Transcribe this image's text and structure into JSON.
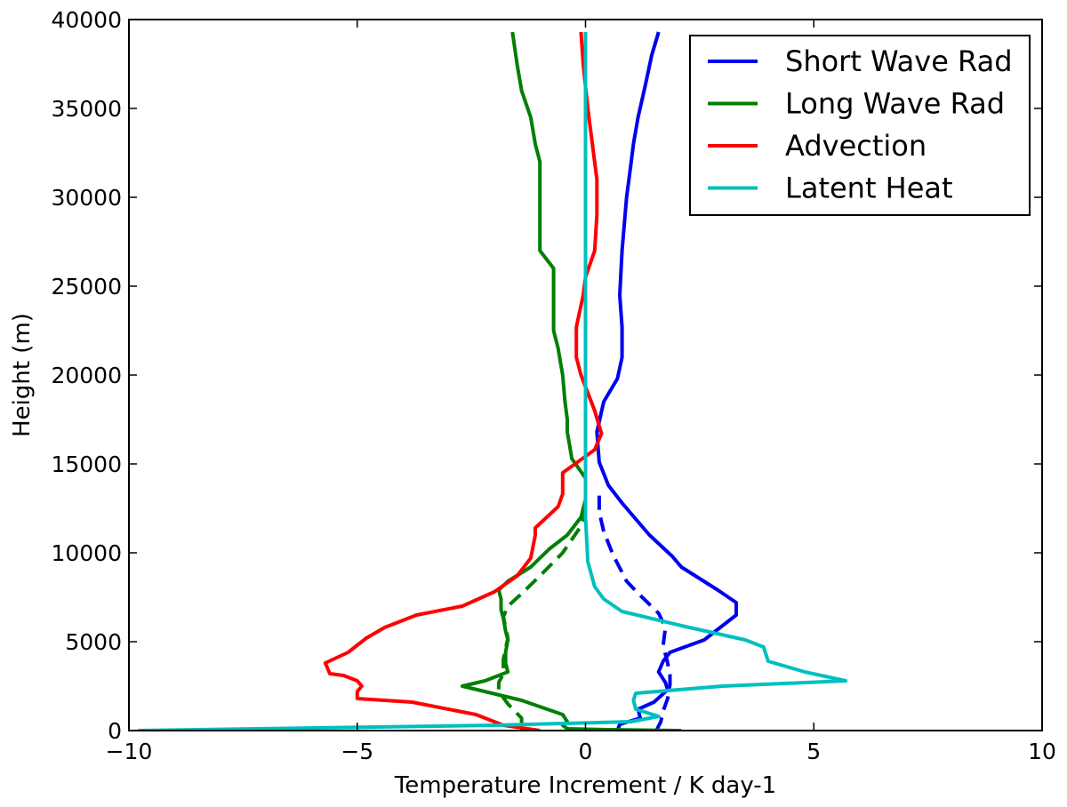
{
  "chart_data": {
    "type": "line",
    "title": "",
    "xlabel": "Temperature Increment / K day-1",
    "ylabel": "Height (m)",
    "xlim": [
      -10,
      10
    ],
    "ylim": [
      0,
      40000
    ],
    "xticks": [
      -10,
      -5,
      0,
      5,
      10
    ],
    "xtick_labels": [
      "−10",
      "−5",
      "0",
      "5",
      "10"
    ],
    "yticks": [
      0,
      5000,
      10000,
      15000,
      20000,
      25000,
      30000,
      35000,
      40000
    ],
    "ytick_labels": [
      "0",
      "5000",
      "10000",
      "15000",
      "20000",
      "25000",
      "30000",
      "35000",
      "40000"
    ],
    "grid": false,
    "legend_position": "top-right",
    "legend": [
      "Short Wave Rad",
      "Long Wave Rad",
      "Advection",
      "Latent Heat"
    ],
    "series": [
      {
        "name": "Short Wave Rad",
        "color": "#0000ee",
        "style": "solid",
        "in_legend": true,
        "points": [
          [
            0.7,
            0
          ],
          [
            0.75,
            350
          ],
          [
            1.2,
            700
          ],
          [
            1.15,
            1200
          ],
          [
            1.5,
            1600
          ],
          [
            1.8,
            2300
          ],
          [
            1.75,
            2700
          ],
          [
            1.6,
            3300
          ],
          [
            1.7,
            3900
          ],
          [
            1.85,
            4400
          ],
          [
            2.6,
            5100
          ],
          [
            2.9,
            5700
          ],
          [
            3.3,
            6500
          ],
          [
            3.3,
            7200
          ],
          [
            2.9,
            7900
          ],
          [
            2.1,
            9200
          ],
          [
            1.9,
            9800
          ],
          [
            1.4,
            11000
          ],
          [
            0.8,
            12800
          ],
          [
            0.5,
            13800
          ],
          [
            0.3,
            15100
          ],
          [
            0.25,
            16800
          ],
          [
            0.4,
            18500
          ],
          [
            0.7,
            19800
          ],
          [
            0.8,
            21000
          ],
          [
            0.8,
            22700
          ],
          [
            0.75,
            24500
          ],
          [
            0.8,
            27000
          ],
          [
            0.9,
            30000
          ],
          [
            1.0,
            32000
          ],
          [
            1.05,
            33000
          ],
          [
            1.15,
            34500
          ],
          [
            1.3,
            36200
          ],
          [
            1.45,
            38000
          ],
          [
            1.6,
            39300
          ]
        ]
      },
      {
        "name": "Short Wave Rad (dashed)",
        "color": "#0000ee",
        "style": "dashed",
        "in_legend": false,
        "points": [
          [
            1.55,
            0
          ],
          [
            1.65,
            500
          ],
          [
            1.7,
            1100
          ],
          [
            1.8,
            1800
          ],
          [
            1.85,
            2600
          ],
          [
            1.85,
            3100
          ],
          [
            1.8,
            3800
          ],
          [
            1.7,
            4800
          ],
          [
            1.75,
            5800
          ],
          [
            1.6,
            6600
          ],
          [
            1.2,
            7600
          ],
          [
            0.9,
            8400
          ],
          [
            0.6,
            9900
          ],
          [
            0.4,
            11200
          ],
          [
            0.3,
            12300
          ],
          [
            0.3,
            13300
          ]
        ]
      },
      {
        "name": "Long Wave Rad",
        "color": "#008000",
        "style": "solid",
        "in_legend": true,
        "points": [
          [
            2.1,
            0
          ],
          [
            0.5,
            50
          ],
          [
            -0.4,
            100
          ],
          [
            -0.5,
            300
          ],
          [
            -0.4,
            500
          ],
          [
            -0.5,
            900
          ],
          [
            -1.4,
            1700
          ],
          [
            -2.7,
            2500
          ],
          [
            -2.2,
            2800
          ],
          [
            -1.7,
            3300
          ],
          [
            -1.75,
            3800
          ],
          [
            -1.75,
            4400
          ],
          [
            -1.7,
            5100
          ],
          [
            -1.75,
            5600
          ],
          [
            -1.8,
            6300
          ],
          [
            -1.85,
            6800
          ],
          [
            -1.85,
            7400
          ],
          [
            -1.9,
            7900
          ],
          [
            -1.7,
            8400
          ],
          [
            -1.2,
            9200
          ],
          [
            -0.8,
            10200
          ],
          [
            -0.4,
            11000
          ],
          [
            -0.1,
            12000
          ],
          [
            0.0,
            13000
          ],
          [
            0.0,
            14200
          ],
          [
            -0.3,
            15300
          ],
          [
            -0.4,
            16800
          ],
          [
            -0.4,
            17500
          ],
          [
            -0.45,
            18500
          ],
          [
            -0.5,
            20000
          ],
          [
            -0.6,
            21500
          ],
          [
            -0.7,
            22500
          ],
          [
            -0.7,
            25500
          ],
          [
            -0.7,
            26000
          ],
          [
            -1.0,
            27000
          ],
          [
            -1.0,
            30000
          ],
          [
            -1.0,
            32000
          ],
          [
            -1.1,
            33000
          ],
          [
            -1.2,
            34500
          ],
          [
            -1.4,
            36000
          ],
          [
            -1.5,
            37500
          ],
          [
            -1.6,
            39300
          ]
        ]
      },
      {
        "name": "Long Wave Rad (dashed)",
        "color": "#008000",
        "style": "dashed",
        "in_legend": false,
        "points": [
          [
            -1.4,
            300
          ],
          [
            -1.4,
            700
          ],
          [
            -1.7,
            1500
          ],
          [
            -1.9,
            2200
          ],
          [
            -1.9,
            2700
          ],
          [
            -1.8,
            3200
          ],
          [
            -1.8,
            4000
          ],
          [
            -1.75,
            4600
          ],
          [
            -1.7,
            5200
          ],
          [
            -1.75,
            5800
          ],
          [
            -1.8,
            6400
          ],
          [
            -1.7,
            7000
          ],
          [
            -1.4,
            7700
          ],
          [
            -1.0,
            8700
          ],
          [
            -0.5,
            10000
          ],
          [
            -0.1,
            11500
          ],
          [
            0.0,
            12300
          ]
        ]
      },
      {
        "name": "Advection",
        "color": "#ff0000",
        "style": "solid",
        "in_legend": true,
        "points": [
          [
            -1.0,
            0
          ],
          [
            -1.8,
            300
          ],
          [
            -2.4,
            900
          ],
          [
            -3.8,
            1600
          ],
          [
            -5.0,
            1800
          ],
          [
            -5.0,
            2200
          ],
          [
            -4.9,
            2500
          ],
          [
            -5.0,
            2800
          ],
          [
            -5.3,
            3100
          ],
          [
            -5.6,
            3200
          ],
          [
            -5.65,
            3500
          ],
          [
            -5.7,
            3800
          ],
          [
            -5.2,
            4400
          ],
          [
            -4.8,
            5200
          ],
          [
            -4.4,
            5800
          ],
          [
            -3.7,
            6500
          ],
          [
            -2.7,
            7000
          ],
          [
            -2.0,
            7800
          ],
          [
            -1.5,
            8700
          ],
          [
            -1.2,
            9700
          ],
          [
            -1.1,
            11000
          ],
          [
            -1.1,
            11400
          ],
          [
            -0.6,
            12600
          ],
          [
            -0.5,
            13300
          ],
          [
            -0.5,
            14500
          ],
          [
            0.2,
            15800
          ],
          [
            0.35,
            16700
          ],
          [
            0.2,
            18000
          ],
          [
            0.05,
            19000
          ],
          [
            -0.1,
            20000
          ],
          [
            -0.2,
            21000
          ],
          [
            -0.2,
            22700
          ],
          [
            -0.05,
            24500
          ],
          [
            0.0,
            25500
          ],
          [
            0.2,
            27000
          ],
          [
            0.25,
            29000
          ],
          [
            0.25,
            31000
          ],
          [
            0.15,
            33000
          ],
          [
            0.05,
            35000
          ],
          [
            -0.05,
            37500
          ],
          [
            -0.1,
            39300
          ]
        ]
      },
      {
        "name": "Latent Heat",
        "color": "#00bfbf",
        "style": "solid",
        "in_legend": true,
        "points": [
          [
            -9.8,
            0
          ],
          [
            -2.0,
            300
          ],
          [
            -0.5,
            400
          ],
          [
            1.0,
            500
          ],
          [
            1.6,
            800
          ],
          [
            1.1,
            1200
          ],
          [
            1.05,
            1700
          ],
          [
            1.1,
            2100
          ],
          [
            3.0,
            2500
          ],
          [
            5.7,
            2800
          ],
          [
            4.8,
            3300
          ],
          [
            4.0,
            3900
          ],
          [
            3.9,
            4700
          ],
          [
            3.5,
            5100
          ],
          [
            2.1,
            5900
          ],
          [
            0.8,
            6700
          ],
          [
            0.4,
            7400
          ],
          [
            0.2,
            8100
          ],
          [
            0.05,
            9500
          ],
          [
            0.0,
            12000
          ],
          [
            0.0,
            39300
          ]
        ]
      }
    ]
  }
}
